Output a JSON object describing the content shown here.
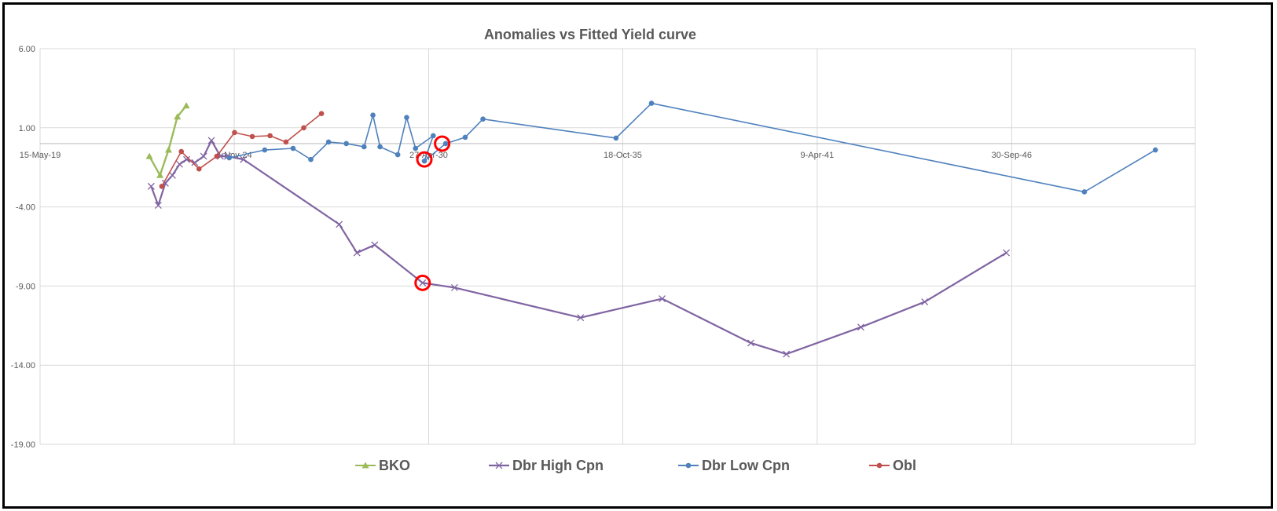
{
  "chart_data": {
    "type": "line",
    "title": "Anomalies vs Fitted Yield curve",
    "xlabel": "",
    "ylabel": "",
    "ylim": [
      -19,
      6
    ],
    "y_ticks": [
      "6.00",
      "1.00",
      "-4.00",
      "-9.00",
      "-14.00",
      "-19.00"
    ],
    "x_ticks": [
      "15-May-19",
      "4-Nov-24",
      "27-Apr-30",
      "18-Oct-35",
      "9-Apr-41",
      "30-Sep-46"
    ],
    "x_tick_values": [
      2019.37,
      2024.84,
      2030.32,
      2035.79,
      2041.27,
      2046.75
    ],
    "grid": true,
    "legend_position": "bottom",
    "series": [
      {
        "name": "BKO",
        "color": "#9bbb59",
        "marker": "triangle",
        "points": [
          [
            2022.45,
            -0.8
          ],
          [
            2022.75,
            -2.0
          ],
          [
            2022.99,
            -0.4
          ],
          [
            2023.24,
            1.7
          ],
          [
            2023.49,
            2.4
          ]
        ]
      },
      {
        "name": "Dbr High Cpn",
        "color": "#8064a2",
        "marker": "x",
        "points": [
          [
            2022.5,
            -2.7
          ],
          [
            2022.7,
            -3.9
          ],
          [
            2022.9,
            -2.5
          ],
          [
            2023.1,
            -2.0
          ],
          [
            2023.3,
            -1.3
          ],
          [
            2023.5,
            -1.0
          ],
          [
            2023.73,
            -1.2
          ],
          [
            2023.98,
            -0.8
          ],
          [
            2024.2,
            0.2
          ],
          [
            2024.45,
            -0.8
          ],
          [
            2024.65,
            -0.8
          ],
          [
            2025.1,
            -1.0
          ],
          [
            2027.8,
            -5.1
          ],
          [
            2028.3,
            -6.9
          ],
          [
            2028.8,
            -6.4
          ],
          [
            2030.15,
            -8.8
          ],
          [
            2031.05,
            -9.1
          ],
          [
            2034.6,
            -11.0
          ],
          [
            2036.9,
            -9.8
          ],
          [
            2039.4,
            -12.6
          ],
          [
            2040.4,
            -13.3
          ],
          [
            2042.5,
            -11.6
          ],
          [
            2044.3,
            -10.0
          ],
          [
            2046.6,
            -6.9
          ]
        ]
      },
      {
        "name": "Dbr Low Cpn",
        "color": "#4f81bd",
        "marker": "circle",
        "points": [
          [
            2024.7,
            -0.9
          ],
          [
            2025.7,
            -0.4
          ],
          [
            2026.5,
            -0.3
          ],
          [
            2027.0,
            -1.0
          ],
          [
            2027.5,
            0.1
          ],
          [
            2028.0,
            0.0
          ],
          [
            2028.5,
            -0.2
          ],
          [
            2028.75,
            1.8
          ],
          [
            2028.95,
            -0.2
          ],
          [
            2029.45,
            -0.7
          ],
          [
            2029.7,
            1.65
          ],
          [
            2029.95,
            -0.3
          ],
          [
            2030.45,
            0.5
          ],
          [
            2030.2,
            -1.1
          ],
          [
            2030.8,
            0.0
          ],
          [
            2031.35,
            0.4
          ],
          [
            2031.85,
            1.55
          ],
          [
            2035.6,
            0.35
          ],
          [
            2036.6,
            2.55
          ],
          [
            2048.8,
            -3.05
          ],
          [
            2050.8,
            -0.4
          ]
        ]
      },
      {
        "name": "Obl",
        "color": "#c0504d",
        "marker": "circle",
        "points": [
          [
            2022.8,
            -2.7
          ],
          [
            2023.35,
            -0.5
          ],
          [
            2023.85,
            -1.6
          ],
          [
            2024.35,
            -0.8
          ],
          [
            2024.85,
            0.7
          ],
          [
            2025.35,
            0.45
          ],
          [
            2025.85,
            0.5
          ],
          [
            2026.3,
            0.1
          ],
          [
            2026.8,
            1.0
          ],
          [
            2027.3,
            1.9
          ]
        ]
      }
    ],
    "annotations": [
      {
        "type": "red-circle",
        "x": 2030.2,
        "y": -1.0
      },
      {
        "type": "red-circle",
        "x": 2030.7,
        "y": 0.0
      },
      {
        "type": "red-circle",
        "x": 2030.15,
        "y": -8.8
      }
    ]
  }
}
